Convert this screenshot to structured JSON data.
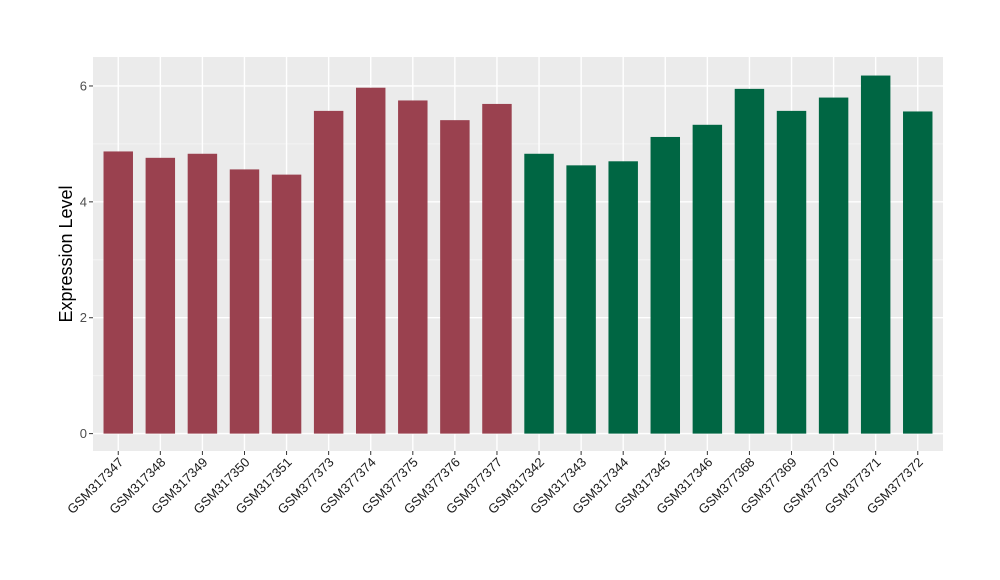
{
  "chart_data": {
    "type": "bar",
    "ylabel": "Expression Level",
    "xlabel": "",
    "ylim": [
      -0.3,
      6.5
    ],
    "yticks": [
      0,
      2,
      4,
      6
    ],
    "grid": true,
    "background": "#ebebeb",
    "categories": [
      "GSM317347",
      "GSM317348",
      "GSM317349",
      "GSM317350",
      "GSM317351",
      "GSM377373",
      "GSM377374",
      "GSM377375",
      "GSM377376",
      "GSM377377",
      "GSM317342",
      "GSM317343",
      "GSM317344",
      "GSM317345",
      "GSM317346",
      "GSM377368",
      "GSM377369",
      "GSM377370",
      "GSM377371",
      "GSM377372"
    ],
    "values": [
      4.87,
      4.76,
      4.83,
      4.56,
      4.47,
      5.57,
      5.97,
      5.75,
      5.41,
      5.69,
      4.83,
      4.63,
      4.7,
      5.12,
      5.33,
      5.95,
      5.57,
      5.8,
      6.18,
      5.56
    ],
    "bar_colors": [
      "#9a414f",
      "#9a414f",
      "#9a414f",
      "#9a414f",
      "#9a414f",
      "#9a414f",
      "#9a414f",
      "#9a414f",
      "#9a414f",
      "#9a414f",
      "#006643",
      "#006643",
      "#006643",
      "#006643",
      "#006643",
      "#006643",
      "#006643",
      "#006643",
      "#006643",
      "#006643"
    ]
  }
}
